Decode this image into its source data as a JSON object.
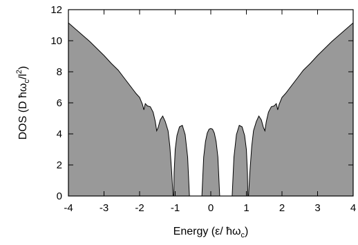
{
  "chart_data": {
    "type": "area",
    "title": "",
    "xlabel": "Energy (ε/ ħω",
    "xlabel_sub": "c",
    "xlabel_end": ")",
    "ylabel_pre": "DOS (D ħω",
    "ylabel_sub": "c",
    "ylabel_mid": "/l",
    "ylabel_sup": "2",
    "ylabel_end": ")",
    "xlim": [
      -4,
      4
    ],
    "ylim": [
      0,
      12
    ],
    "xticks": [
      "-4",
      "-3",
      "-2",
      "-1",
      "0",
      "1",
      "2",
      "3",
      "4"
    ],
    "yticks": [
      "0",
      "2",
      "4",
      "6",
      "8",
      "10",
      "12"
    ],
    "grid": false,
    "fill_color": "#999999",
    "series": [
      {
        "x": [
          0,
          0.05,
          0.1,
          0.15,
          0.2,
          0.23,
          0.25,
          0.3,
          0.5,
          0.55,
          0.6,
          0.65,
          0.72,
          0.8,
          0.88,
          0.95,
          1.0,
          1.03,
          1.04,
          1.06,
          1.1,
          1.15,
          1.2,
          1.28,
          1.35,
          1.42,
          1.48,
          1.52,
          1.56,
          1.62,
          1.7,
          1.78,
          1.84,
          1.88,
          1.92,
          2.0,
          2.1,
          2.2,
          2.4,
          2.6,
          2.8,
          3.0,
          3.2,
          3.4,
          3.6,
          3.8,
          4.0
        ],
        "y": [
          4.35,
          4.3,
          4.05,
          3.5,
          2.5,
          1.0,
          0.0,
          0.0,
          0.0,
          0.0,
          0.0,
          2.5,
          3.95,
          4.55,
          4.45,
          3.9,
          3.0,
          1.5,
          0.0,
          0.0,
          1.6,
          3.2,
          4.2,
          4.8,
          5.15,
          4.9,
          4.4,
          4.2,
          4.8,
          5.4,
          5.75,
          5.8,
          5.95,
          5.55,
          5.9,
          6.35,
          6.6,
          6.9,
          7.5,
          8.1,
          8.55,
          9.05,
          9.5,
          9.95,
          10.35,
          10.75,
          11.15
        ],
        "symmetric_about_zero": true
      }
    ]
  }
}
